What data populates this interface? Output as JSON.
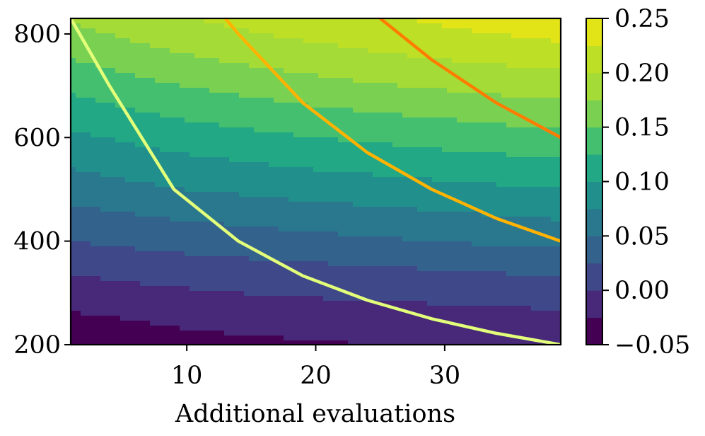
{
  "chart_data": {
    "type": "contour",
    "title": "",
    "xlabel": "Additional evaluations",
    "ylabel": "",
    "xlim": [
      1,
      39
    ],
    "ylim": [
      200,
      830
    ],
    "x_ticks": [
      10,
      20,
      30
    ],
    "x_tick_labels": [
      "10",
      "20",
      "30"
    ],
    "y_ticks": [
      200,
      400,
      600,
      800
    ],
    "y_tick_labels": [
      "200",
      "400",
      "600",
      "800"
    ],
    "grid": false,
    "colormap": "viridis",
    "colorbar": {
      "min": -0.05,
      "max": 0.25,
      "levels": [
        -0.05,
        -0.025,
        0.0,
        0.025,
        0.05,
        0.075,
        0.1,
        0.125,
        0.15,
        0.175,
        0.2,
        0.225,
        0.25
      ],
      "ticks": [
        -0.05,
        0.0,
        0.05,
        0.1,
        0.15,
        0.2,
        0.25
      ],
      "tick_labels": [
        "−0.05",
        "0.00",
        "0.05",
        "0.10",
        "0.15",
        "0.20",
        "0.25"
      ],
      "colors": [
        "#440154",
        "#482979",
        "#3f4889",
        "#33638d",
        "#2a788e",
        "#21908d",
        "#22a884",
        "#44bf70",
        "#7ad151",
        "#a5db36",
        "#bddf26",
        "#e3e418"
      ]
    },
    "contour_field": {
      "description_free": true,
      "x": [
        1,
        5,
        9,
        14,
        19,
        24,
        29,
        34,
        39
      ],
      "y": [
        200,
        250,
        300,
        350,
        400,
        450,
        500,
        550,
        600,
        650,
        700,
        750,
        800,
        830
      ],
      "z": [
        [
          -0.045,
          -0.04,
          -0.035,
          -0.03,
          -0.028,
          -0.025,
          -0.022,
          -0.02,
          -0.018
        ],
        [
          -0.03,
          -0.025,
          -0.02,
          -0.017,
          -0.014,
          -0.012,
          -0.01,
          -0.008,
          -0.006
        ],
        [
          -0.012,
          -0.008,
          -0.004,
          0.0,
          0.003,
          0.005,
          0.007,
          0.009,
          0.011
        ],
        [
          0.005,
          0.01,
          0.014,
          0.018,
          0.021,
          0.024,
          0.027,
          0.03,
          0.032
        ],
        [
          0.025,
          0.03,
          0.034,
          0.038,
          0.042,
          0.046,
          0.05,
          0.054,
          0.057
        ],
        [
          0.042,
          0.048,
          0.053,
          0.058,
          0.063,
          0.067,
          0.071,
          0.075,
          0.079
        ],
        [
          0.062,
          0.068,
          0.074,
          0.079,
          0.084,
          0.088,
          0.092,
          0.096,
          0.1
        ],
        [
          0.078,
          0.085,
          0.092,
          0.098,
          0.104,
          0.108,
          0.113,
          0.117,
          0.121
        ],
        [
          0.095,
          0.103,
          0.111,
          0.118,
          0.124,
          0.129,
          0.134,
          0.139,
          0.143
        ],
        [
          0.113,
          0.122,
          0.13,
          0.137,
          0.144,
          0.15,
          0.155,
          0.16,
          0.165
        ],
        [
          0.13,
          0.14,
          0.149,
          0.157,
          0.165,
          0.172,
          0.178,
          0.183,
          0.187
        ],
        [
          0.15,
          0.16,
          0.169,
          0.178,
          0.186,
          0.193,
          0.199,
          0.204,
          0.209
        ],
        [
          0.168,
          0.178,
          0.188,
          0.197,
          0.205,
          0.212,
          0.219,
          0.225,
          0.232
        ],
        [
          0.178,
          0.189,
          0.198,
          0.206,
          0.214,
          0.221,
          0.228,
          0.236,
          0.243
        ]
      ]
    },
    "series": [
      {
        "color": "#e3ff7a",
        "x": [
          1,
          4,
          9,
          14,
          19,
          24,
          29,
          34,
          39
        ],
        "y": [
          830,
          700,
          500,
          400,
          333,
          286,
          250,
          222,
          200
        ]
      },
      {
        "color": "#ffb300",
        "x": [
          13,
          14,
          19,
          24,
          29,
          34,
          39
        ],
        "y": [
          830,
          800,
          667,
          571,
          500,
          444,
          400
        ]
      },
      {
        "color": "#ff7c00",
        "x": [
          25,
          29,
          34,
          39
        ],
        "y": [
          830,
          750,
          667,
          600
        ]
      }
    ]
  }
}
